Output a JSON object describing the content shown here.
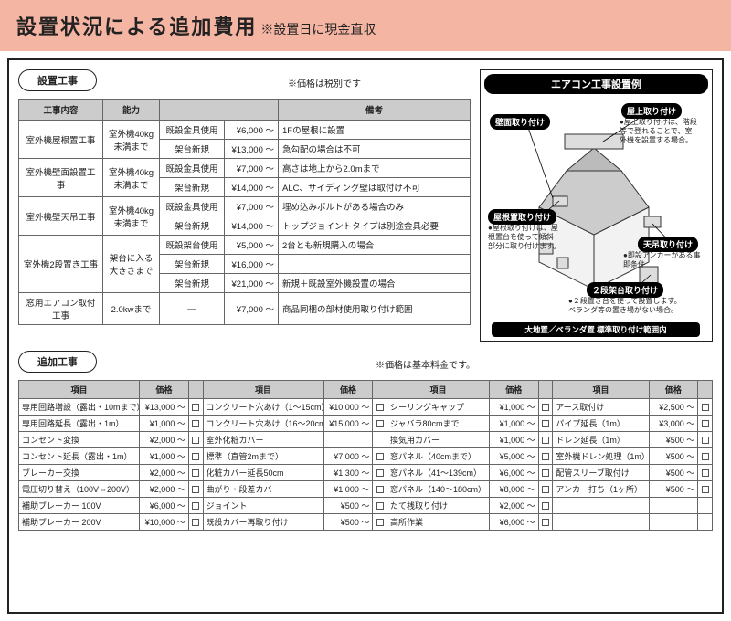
{
  "header": {
    "title": "設置状況による追加費用",
    "note": "※設置日に現金直収"
  },
  "section1": {
    "label": "設置工事",
    "tax_note": "※価格は税別です",
    "headers": [
      "工事内容",
      "能力",
      "",
      "",
      "備考"
    ],
    "rows": [
      {
        "name": "室外機屋根置工事",
        "cap": "室外機40kg\n未満まで",
        "span": 2,
        "sub": [
          {
            "method": "既設金具使用",
            "price": "¥6,000 ～",
            "note": "1Fの屋根に設置"
          },
          {
            "method": "架台新規",
            "price": "¥13,000 ～",
            "note": "急勾配の場合は不可"
          }
        ]
      },
      {
        "name": "室外機壁面設置工事",
        "cap": "室外機40kg\n未満まで",
        "span": 2,
        "sub": [
          {
            "method": "既設金具使用",
            "price": "¥7,000 ～",
            "note": "高さは地上から2.0mまで"
          },
          {
            "method": "架台新規",
            "price": "¥14,000 ～",
            "note": "ALC、サイディング壁は取付け不可"
          }
        ]
      },
      {
        "name": "室外機壁天吊工事",
        "cap": "室外機40kg\n未満まで",
        "span": 2,
        "sub": [
          {
            "method": "既設金具使用",
            "price": "¥7,000 ～",
            "note": "埋め込みボルトがある場合のみ"
          },
          {
            "method": "架台新規",
            "price": "¥14,000 ～",
            "note": "トップジョイントタイプは別途金具必要"
          }
        ]
      },
      {
        "name": "室外機2段置き工事",
        "cap": "架台に入る\n大きさまで",
        "span": 3,
        "sub": [
          {
            "method": "既設架台使用",
            "price": "¥5,000 ～",
            "note": "2台とも新規購入の場合"
          },
          {
            "method": "架台新規",
            "price": "¥16,000 ～",
            "note": ""
          },
          {
            "method": "架台新規",
            "price": "¥21,000 ～",
            "note": "新規＋既設室外機設置の場合"
          }
        ]
      },
      {
        "name": "窓用エアコン取付工事",
        "cap": "2.0kwまで",
        "span": 1,
        "sub": [
          {
            "method": "—",
            "price": "¥7,000 ～",
            "note": "商品同梱の部材使用取り付け範囲"
          }
        ]
      }
    ]
  },
  "example": {
    "title": "エアコン工事設置例",
    "pills": {
      "wall": "壁面取り付け",
      "roof_top": "屋上取り付け",
      "roof": "屋根置取り付け",
      "ceiling": "天吊取り付け",
      "two_tier": "２段架台取り付け",
      "ground": "大地置／ベランダ置 標準取り付け範囲内"
    },
    "notes": {
      "roof_top": "●屋上取り付けは、階段\n等で登れることで、室\n外機を設置する場合。",
      "roof": "●屋根取り付けは、屋\n根置台を使って傾斜\n部分に取り付けます。",
      "ceiling": "●即設アンカーがある事\n即条件",
      "two_tier": "●２段置き台を使って設置します。\nベランダ等の置き場がない場合。"
    }
  },
  "section2": {
    "label": "追加工事",
    "note": "※価格は基本料金です。",
    "group_headers": [
      "項目",
      "価格",
      "",
      "項目",
      "価格",
      "",
      "項目",
      "価格",
      "",
      "項目",
      "価格",
      ""
    ],
    "rows": [
      [
        {
          "i": "専用回路増設（露出・10mまで）",
          "p": "¥13,000 ～"
        },
        {
          "i": "コンクリート穴あけ（1～15cm）",
          "p": "¥10,000 ～"
        },
        {
          "i": "シーリングキャップ",
          "p": "¥1,000 ～"
        },
        {
          "i": "アース取付け",
          "p": "¥2,500 ～"
        }
      ],
      [
        {
          "i": "専用回路延長（露出・1m）",
          "p": "¥1,000 ～"
        },
        {
          "i": "コンクリート穴あけ（16～20cm）",
          "p": "¥15,000 ～"
        },
        {
          "i": "ジャバラ80cmまで",
          "p": "¥1,000 ～"
        },
        {
          "i": "パイプ延長（1m）",
          "p": "¥3,000 ～"
        }
      ],
      [
        {
          "i": "コンセント変換",
          "p": "¥2,000 ～"
        },
        {
          "i": "室外化粧カバー",
          "p": "",
          "empty": true
        },
        {
          "i": "換気用カバー",
          "p": "¥1,000 ～"
        },
        {
          "i": "ドレン延長（1m）",
          "p": "¥500 ～"
        }
      ],
      [
        {
          "i": "コンセント延長（露出・1m）",
          "p": "¥1,000 ～"
        },
        {
          "i": "標準（直管2mまで）",
          "p": "¥7,000 ～"
        },
        {
          "i": "窓パネル（40cmまで）",
          "p": "¥5,000 ～"
        },
        {
          "i": "室外機ドレン処理（1m）",
          "p": "¥500 ～"
        }
      ],
      [
        {
          "i": "ブレーカー交換",
          "p": "¥2,000 ～"
        },
        {
          "i": "化粧カバー延長50cm",
          "p": "¥1,300 ～"
        },
        {
          "i": "窓パネル（41～139cm）",
          "p": "¥6,000 ～"
        },
        {
          "i": "配管スリーブ取付け",
          "p": "¥500 ～"
        }
      ],
      [
        {
          "i": "電圧切り替え（100V⇔200V）",
          "p": "¥2,000 ～"
        },
        {
          "i": "曲がり・段差カバー",
          "p": "¥1,000 ～"
        },
        {
          "i": "窓パネル（140～180cm）",
          "p": "¥8,000 ～"
        },
        {
          "i": "アンカー打ち（1ヶ所）",
          "p": "¥500 ～"
        }
      ],
      [
        {
          "i": "補助ブレーカー   100V",
          "p": "¥6,000 ～"
        },
        {
          "i": "ジョイント",
          "p": "¥500 ～"
        },
        {
          "i": "たて桟取り付け",
          "p": "¥2,000 ～"
        },
        {
          "i": "",
          "p": "",
          "blank": true
        }
      ],
      [
        {
          "i": "補助ブレーカー   200V",
          "p": "¥10,000 ～"
        },
        {
          "i": "既設カバー再取り付け",
          "p": "¥500 ～"
        },
        {
          "i": "高所作業",
          "p": "¥6,000 ～"
        },
        {
          "i": "",
          "p": "",
          "blank": true
        }
      ]
    ]
  }
}
